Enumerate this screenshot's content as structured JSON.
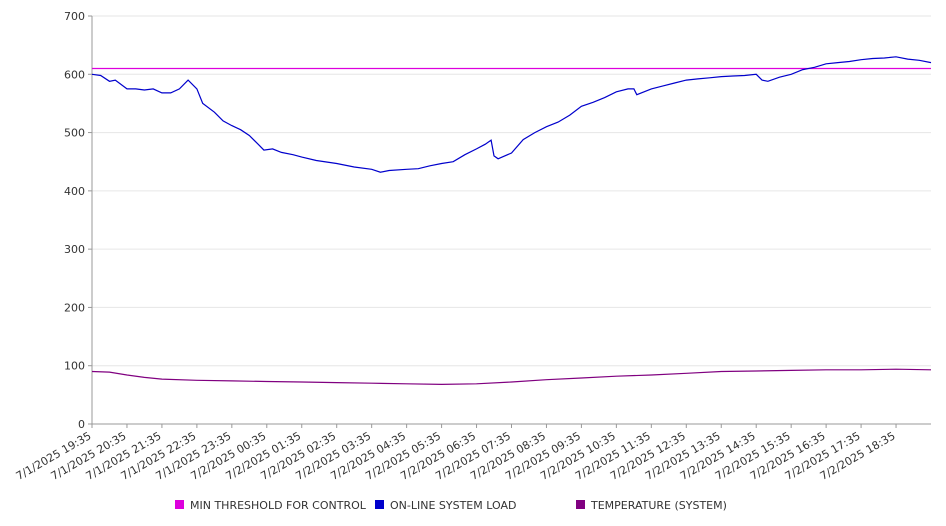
{
  "chart_data": {
    "type": "line",
    "title": "",
    "xlabel": "",
    "ylabel": "",
    "ylim": [
      0,
      700
    ],
    "yticks": [
      0,
      100,
      200,
      300,
      400,
      500,
      600,
      700
    ],
    "grid": true,
    "legend_position": "bottom",
    "x_tick_labels": [
      "7/1/2025 19:35",
      "7/1/2025 20:35",
      "7/1/2025 21:35",
      "7/1/2025 22:35",
      "7/1/2025 23:35",
      "7/2/2025 00:35",
      "7/2/2025 01:35",
      "7/2/2025 02:35",
      "7/2/2025 03:35",
      "7/2/2025 04:35",
      "7/2/2025 05:35",
      "7/2/2025 06:35",
      "7/2/2025 07:35",
      "7/2/2025 08:35",
      "7/2/2025 09:35",
      "7/2/2025 10:35",
      "7/2/2025 11:35",
      "7/2/2025 12:35",
      "7/2/2025 13:35",
      "7/2/2025 14:35",
      "7/2/2025 15:35",
      "7/2/2025 16:35",
      "7/2/2025 17:35",
      "7/2/2025 18:35"
    ],
    "series": [
      {
        "name": "MIN THRESHOLD FOR CONTROL",
        "color": "#dd00dd",
        "points": [
          [
            "7/1/2025 19:35",
            610
          ],
          [
            "7/2/2025 19:35",
            610
          ]
        ]
      },
      {
        "name": "ON-LINE SYSTEM LOAD",
        "color": "#0000cc",
        "points": [
          [
            "7/1/2025 19:35",
            600
          ],
          [
            "7/1/2025 19:50",
            598
          ],
          [
            "7/1/2025 20:05",
            588
          ],
          [
            "7/1/2025 20:15",
            590
          ],
          [
            "7/1/2025 20:35",
            575
          ],
          [
            "7/1/2025 20:50",
            575
          ],
          [
            "7/1/2025 21:05",
            573
          ],
          [
            "7/1/2025 21:20",
            575
          ],
          [
            "7/1/2025 21:35",
            568
          ],
          [
            "7/1/2025 21:50",
            568
          ],
          [
            "7/1/2025 22:05",
            575
          ],
          [
            "7/1/2025 22:20",
            590
          ],
          [
            "7/1/2025 22:35",
            575
          ],
          [
            "7/1/2025 22:45",
            550
          ],
          [
            "7/1/2025 23:05",
            535
          ],
          [
            "7/1/2025 23:20",
            520
          ],
          [
            "7/1/2025 23:35",
            512
          ],
          [
            "7/1/2025 23:50",
            505
          ],
          [
            "7/2/2025 00:05",
            495
          ],
          [
            "7/2/2025 00:20",
            480
          ],
          [
            "7/2/2025 00:30",
            470
          ],
          [
            "7/2/2025 00:45",
            472
          ],
          [
            "7/2/2025 01:00",
            466
          ],
          [
            "7/2/2025 01:20",
            462
          ],
          [
            "7/2/2025 01:35",
            458
          ],
          [
            "7/2/2025 02:00",
            452
          ],
          [
            "7/2/2025 02:35",
            447
          ],
          [
            "7/2/2025 03:05",
            441
          ],
          [
            "7/2/2025 03:35",
            437
          ],
          [
            "7/2/2025 03:50",
            432
          ],
          [
            "7/2/2025 04:05",
            435
          ],
          [
            "7/2/2025 04:35",
            437
          ],
          [
            "7/2/2025 04:55",
            438
          ],
          [
            "7/2/2025 05:15",
            443
          ],
          [
            "7/2/2025 05:35",
            447
          ],
          [
            "7/2/2025 05:55",
            450
          ],
          [
            "7/2/2025 06:15",
            462
          ],
          [
            "7/2/2025 06:35",
            472
          ],
          [
            "7/2/2025 06:50",
            480
          ],
          [
            "7/2/2025 07:00",
            487
          ],
          [
            "7/2/2025 07:05",
            460
          ],
          [
            "7/2/2025 07:12",
            455
          ],
          [
            "7/2/2025 07:35",
            465
          ],
          [
            "7/2/2025 07:55",
            488
          ],
          [
            "7/2/2025 08:15",
            500
          ],
          [
            "7/2/2025 08:35",
            510
          ],
          [
            "7/2/2025 08:55",
            518
          ],
          [
            "7/2/2025 09:15",
            530
          ],
          [
            "7/2/2025 09:35",
            545
          ],
          [
            "7/2/2025 09:55",
            552
          ],
          [
            "7/2/2025 10:15",
            560
          ],
          [
            "7/2/2025 10:35",
            570
          ],
          [
            "7/2/2025 10:55",
            575
          ],
          [
            "7/2/2025 11:05",
            575
          ],
          [
            "7/2/2025 11:10",
            565
          ],
          [
            "7/2/2025 11:35",
            575
          ],
          [
            "7/2/2025 11:55",
            580
          ],
          [
            "7/2/2025 12:15",
            585
          ],
          [
            "7/2/2025 12:35",
            590
          ],
          [
            "7/2/2025 12:55",
            592
          ],
          [
            "7/2/2025 13:15",
            594
          ],
          [
            "7/2/2025 13:35",
            596
          ],
          [
            "7/2/2025 13:55",
            597
          ],
          [
            "7/2/2025 14:15",
            598
          ],
          [
            "7/2/2025 14:35",
            600
          ],
          [
            "7/2/2025 14:45",
            590
          ],
          [
            "7/2/2025 14:55",
            588
          ],
          [
            "7/2/2025 15:15",
            595
          ],
          [
            "7/2/2025 15:35",
            600
          ],
          [
            "7/2/2025 15:55",
            608
          ],
          [
            "7/2/2025 16:15",
            612
          ],
          [
            "7/2/2025 16:35",
            618
          ],
          [
            "7/2/2025 16:55",
            620
          ],
          [
            "7/2/2025 17:15",
            622
          ],
          [
            "7/2/2025 17:35",
            625
          ],
          [
            "7/2/2025 17:55",
            627
          ],
          [
            "7/2/2025 18:15",
            628
          ],
          [
            "7/2/2025 18:35",
            630
          ],
          [
            "7/2/2025 18:55",
            626
          ],
          [
            "7/2/2025 19:15",
            624
          ],
          [
            "7/2/2025 19:35",
            620
          ]
        ]
      },
      {
        "name": "TEMPERATURE (SYSTEM)",
        "color": "#800080",
        "points": [
          [
            "7/1/2025 19:35",
            90
          ],
          [
            "7/1/2025 20:05",
            89
          ],
          [
            "7/1/2025 20:35",
            84
          ],
          [
            "7/1/2025 21:05",
            80
          ],
          [
            "7/1/2025 21:35",
            77
          ],
          [
            "7/1/2025 22:35",
            75
          ],
          [
            "7/1/2025 23:35",
            74
          ],
          [
            "7/2/2025 00:35",
            73
          ],
          [
            "7/2/2025 01:35",
            72
          ],
          [
            "7/2/2025 02:35",
            71
          ],
          [
            "7/2/2025 03:35",
            70
          ],
          [
            "7/2/2025 04:35",
            69
          ],
          [
            "7/2/2025 05:35",
            68
          ],
          [
            "7/2/2025 06:35",
            69
          ],
          [
            "7/2/2025 07:35",
            72
          ],
          [
            "7/2/2025 08:35",
            76
          ],
          [
            "7/2/2025 09:35",
            79
          ],
          [
            "7/2/2025 10:35",
            82
          ],
          [
            "7/2/2025 11:35",
            84
          ],
          [
            "7/2/2025 12:35",
            87
          ],
          [
            "7/2/2025 13:35",
            90
          ],
          [
            "7/2/2025 14:35",
            91
          ],
          [
            "7/2/2025 15:35",
            92
          ],
          [
            "7/2/2025 16:35",
            93
          ],
          [
            "7/2/2025 17:35",
            93
          ],
          [
            "7/2/2025 18:35",
            94
          ],
          [
            "7/2/2025 19:35",
            93
          ]
        ]
      }
    ]
  }
}
